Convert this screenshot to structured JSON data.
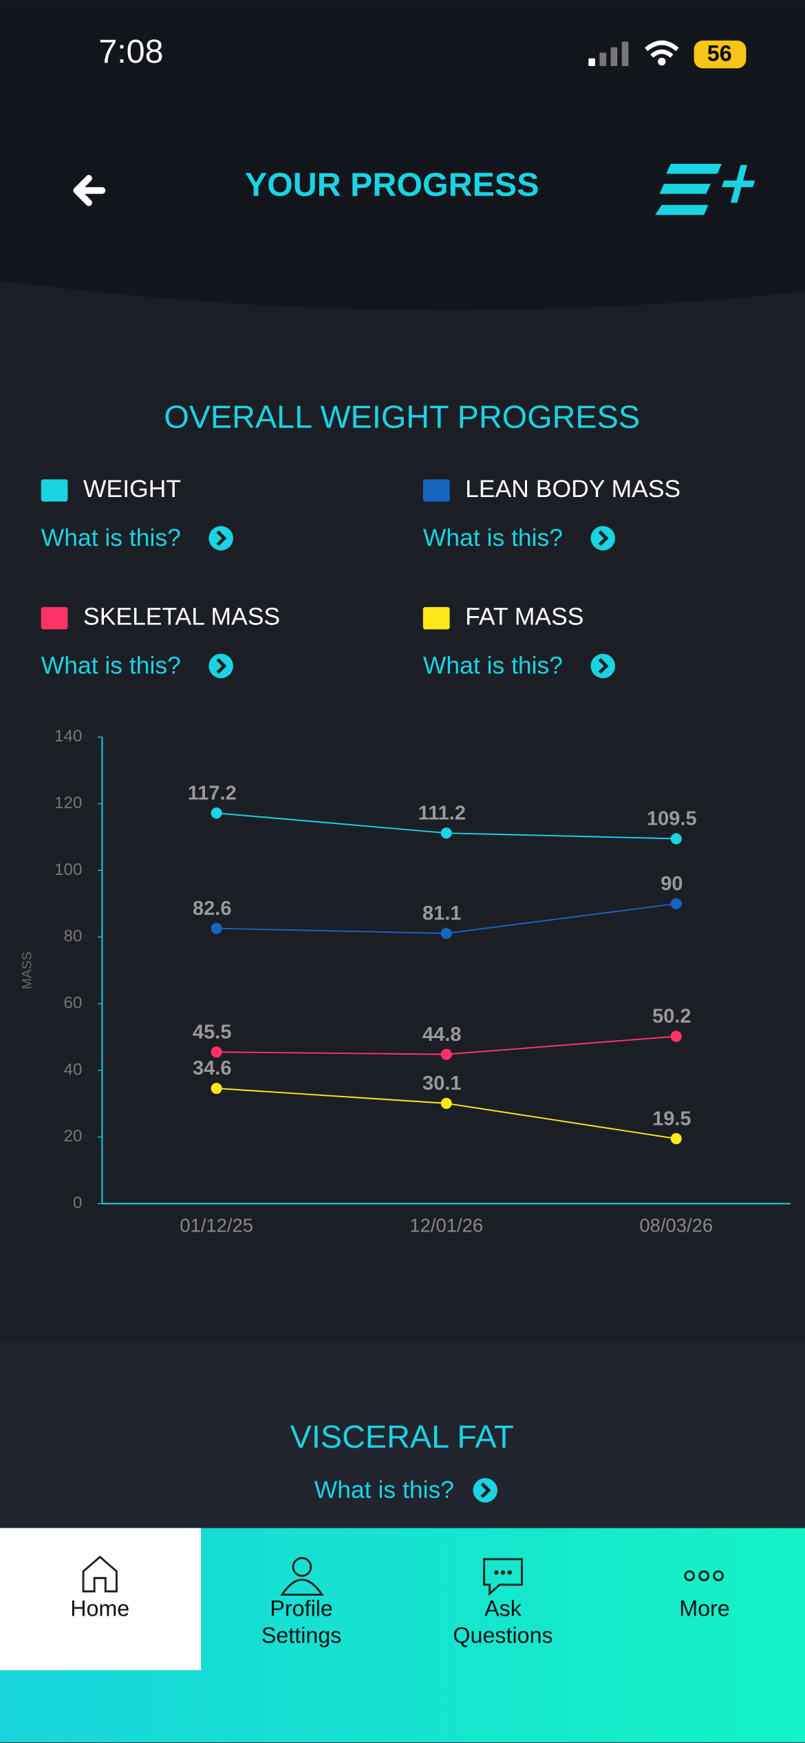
{
  "status_bar": {
    "time": "7:08",
    "battery": "56"
  },
  "header": {
    "title": "YOUR PROGRESS"
  },
  "chart_data": {
    "type": "line",
    "title": "OVERALL WEIGHT PROGRESS",
    "help_text": "What is this?",
    "y_label": "MASS",
    "categories": [
      "01/12/25",
      "12/01/26",
      "08/03/26"
    ],
    "series": [
      {
        "name": "WEIGHT",
        "color": "#1ad4e2",
        "values": [
          117.2,
          111.2,
          109.5
        ]
      },
      {
        "name": "LEAN BODY MASS",
        "color": "#1565c0",
        "values": [
          82.6,
          81.1,
          90
        ]
      },
      {
        "name": "SKELETAL MASS",
        "color": "#ff3366",
        "values": [
          45.5,
          44.8,
          50.2
        ]
      },
      {
        "name": "FAT MASS",
        "color": "#ffe81a",
        "values": [
          34.6,
          30.1,
          19.5
        ]
      }
    ],
    "ylim": [
      0,
      140
    ],
    "yticks": [
      0,
      20,
      40,
      60,
      80,
      100,
      120,
      140
    ]
  },
  "visceral": {
    "title": "VISCERAL FAT",
    "help_text": "What is this?"
  },
  "nav": [
    {
      "lines": [
        "Home"
      ]
    },
    {
      "lines": [
        "Profile",
        "Settings"
      ]
    },
    {
      "lines": [
        "Ask",
        "Questions"
      ]
    },
    {
      "lines": [
        "More"
      ]
    }
  ]
}
